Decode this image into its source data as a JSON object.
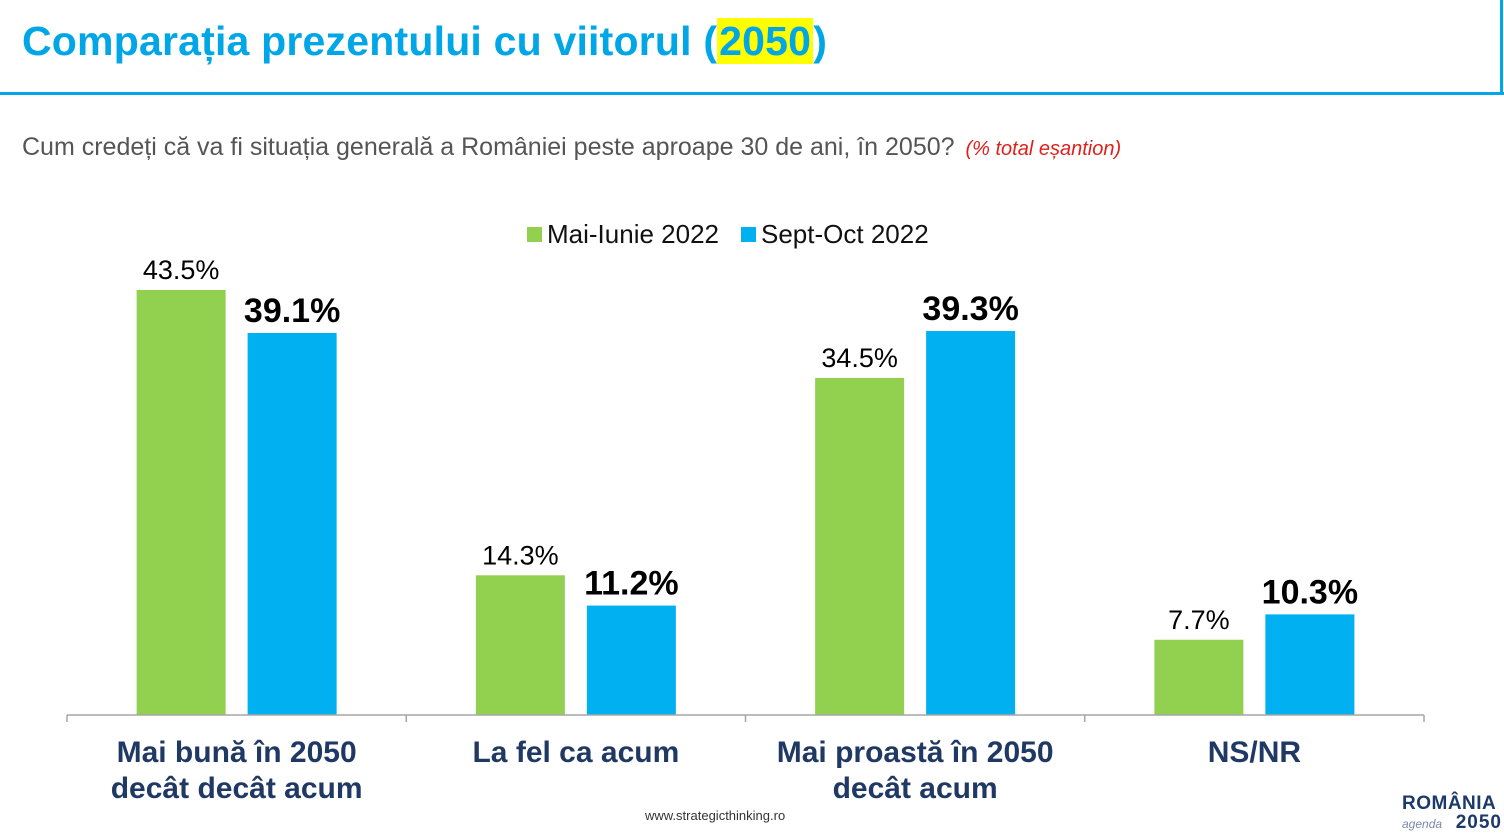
{
  "page": {
    "title_prefix": "Comparația prezentului cu viitorul (",
    "title_highlight": "2050",
    "title_suffix": ")",
    "question": "Cum credeți că va fi situația generală a României peste aproape 30 de ani, în 2050?",
    "question_note": "(% total eșantion)",
    "footer_url": "www.strategicthinking.ro",
    "logo_line1": "ROMÂNIA",
    "logo_agenda": "agenda",
    "logo_year": "2050"
  },
  "colors": {
    "accent": "#00a6e6",
    "highlight": "#ffff00",
    "note_red": "#e0201b",
    "series_green": "#92d050",
    "series_blue": "#00b0f0",
    "category_text": "#1f3864"
  },
  "chart_data": {
    "type": "bar",
    "categories": [
      [
        "Mai bună în 2050",
        "decât decât acum"
      ],
      [
        "La fel ca acum"
      ],
      [
        "Mai proastă în 2050",
        "decât acum"
      ],
      [
        "NS/NR"
      ]
    ],
    "series": [
      {
        "name": "Mai-Iunie 2022",
        "values": [
          43.5,
          14.3,
          34.5,
          7.7
        ],
        "labels": [
          "43.5%",
          "14.3%",
          "34.5%",
          "7.7%"
        ],
        "color": "#92d050",
        "bold_labels": false
      },
      {
        "name": "Sept-Oct 2022",
        "values": [
          39.1,
          11.2,
          39.3,
          10.3
        ],
        "labels": [
          "39.1%",
          "11.2%",
          "39.3%",
          "10.3%"
        ],
        "color": "#00b0f0",
        "bold_labels": true
      }
    ],
    "ylim": [
      0,
      43.5
    ],
    "grid": false,
    "legend_position": "top-center"
  }
}
